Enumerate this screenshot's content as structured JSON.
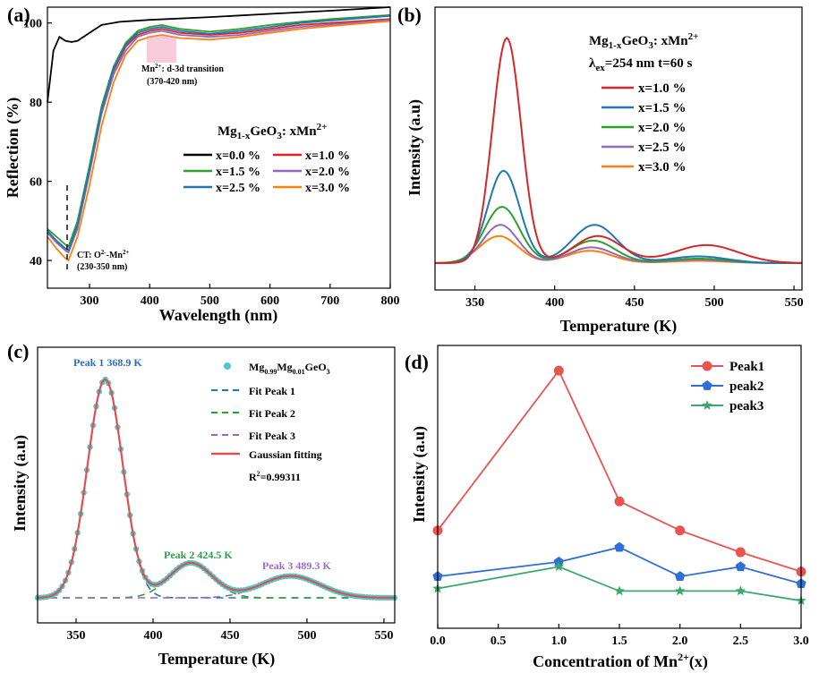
{
  "figure": {
    "panels": [
      {
        "label": "(a)",
        "chart_data": {
          "type": "line",
          "xlabel": "Wavelength (nm)",
          "ylabel": "Reflection (%)",
          "xlim": [
            230,
            800
          ],
          "ylim": [
            33,
            104
          ],
          "xticks": [
            300,
            400,
            500,
            600,
            700,
            800
          ],
          "yticks": [
            40,
            60,
            80,
            100
          ],
          "legend_title": "Mg1-xGeO3: xMn2+",
          "series": [
            {
              "name": "x=0.0 %",
              "color": "#000000",
              "points": [
                [
                  230,
                  80
                ],
                [
                  240,
                  93
                ],
                [
                  250,
                  96.5
                ],
                [
                  260,
                  95.5
                ],
                [
                  270,
                  95.2
                ],
                [
                  280,
                  95.5
                ],
                [
                  300,
                  97.5
                ],
                [
                  320,
                  99.5
                ],
                [
                  350,
                  100.3
                ],
                [
                  400,
                  100.8
                ],
                [
                  500,
                  101.5
                ],
                [
                  600,
                  102.3
                ],
                [
                  700,
                  103.1
                ],
                [
                  800,
                  104
                ]
              ]
            },
            {
              "name": "x=1.0 %",
              "color": "#d62728",
              "points": [
                [
                  230,
                  47
                ],
                [
                  245,
                  45
                ],
                [
                  260,
                  43
                ],
                [
                  265,
                  42.5
                ],
                [
                  280,
                  49
                ],
                [
                  300,
                  63
                ],
                [
                  320,
                  78
                ],
                [
                  340,
                  88
                ],
                [
                  360,
                  94
                ],
                [
                  380,
                  97
                ],
                [
                  400,
                  98
                ],
                [
                  420,
                  98.5
                ],
                [
                  450,
                  97.5
                ],
                [
                  500,
                  97
                ],
                [
                  550,
                  97.5
                ],
                [
                  600,
                  98.5
                ],
                [
                  650,
                  99.5
                ],
                [
                  700,
                  100
                ],
                [
                  800,
                  101
                ]
              ]
            },
            {
              "name": "x=1.5 %",
              "color": "#2ca02c",
              "points": [
                [
                  230,
                  48
                ],
                [
                  245,
                  46
                ],
                [
                  260,
                  44
                ],
                [
                  265,
                  43.5
                ],
                [
                  280,
                  50
                ],
                [
                  300,
                  64
                ],
                [
                  320,
                  79
                ],
                [
                  340,
                  89
                ],
                [
                  360,
                  95
                ],
                [
                  380,
                  98
                ],
                [
                  400,
                  99
                ],
                [
                  420,
                  99.5
                ],
                [
                  450,
                  98.5
                ],
                [
                  500,
                  97.8
                ],
                [
                  550,
                  98.5
                ],
                [
                  600,
                  99.5
                ],
                [
                  650,
                  100.3
                ],
                [
                  700,
                  101
                ],
                [
                  800,
                  102
                ]
              ]
            },
            {
              "name": "x=2.0 %",
              "color": "#9467bd",
              "points": [
                [
                  230,
                  47
                ],
                [
                  245,
                  44.5
                ],
                [
                  260,
                  42.5
                ],
                [
                  265,
                  42
                ],
                [
                  280,
                  48
                ],
                [
                  300,
                  62
                ],
                [
                  320,
                  77
                ],
                [
                  340,
                  87
                ],
                [
                  360,
                  93
                ],
                [
                  380,
                  96.5
                ],
                [
                  400,
                  97.5
                ],
                [
                  420,
                  98
                ],
                [
                  450,
                  97
                ],
                [
                  500,
                  96.5
                ],
                [
                  550,
                  97
                ],
                [
                  600,
                  98
                ],
                [
                  650,
                  99
                ],
                [
                  700,
                  99.6
                ],
                [
                  800,
                  100.8
                ]
              ]
            },
            {
              "name": "x=2.5 %",
              "color": "#1f77b4",
              "points": [
                [
                  230,
                  47.5
                ],
                [
                  245,
                  45
                ],
                [
                  260,
                  43
                ],
                [
                  265,
                  42.5
                ],
                [
                  280,
                  49
                ],
                [
                  300,
                  63
                ],
                [
                  320,
                  78
                ],
                [
                  340,
                  88.5
                ],
                [
                  360,
                  94.5
                ],
                [
                  380,
                  97.5
                ],
                [
                  400,
                  98.5
                ],
                [
                  420,
                  99
                ],
                [
                  450,
                  98
                ],
                [
                  500,
                  97.3
                ],
                [
                  550,
                  98
                ],
                [
                  600,
                  99
                ],
                [
                  650,
                  100
                ],
                [
                  700,
                  100.6
                ],
                [
                  800,
                  101.8
                ]
              ]
            },
            {
              "name": "x=3.0 %",
              "color": "#ff7f0e",
              "points": [
                [
                  230,
                  46
                ],
                [
                  245,
                  43
                ],
                [
                  260,
                  40.5
                ],
                [
                  265,
                  40
                ],
                [
                  280,
                  46
                ],
                [
                  300,
                  59
                ],
                [
                  320,
                  74
                ],
                [
                  340,
                  85
                ],
                [
                  360,
                  92
                ],
                [
                  380,
                  95.5
                ],
                [
                  400,
                  96.5
                ],
                [
                  420,
                  97
                ],
                [
                  450,
                  96.2
                ],
                [
                  500,
                  95.8
                ],
                [
                  550,
                  96.5
                ],
                [
                  600,
                  97.5
                ],
                [
                  650,
                  98.5
                ],
                [
                  700,
                  99.2
                ],
                [
                  800,
                  100.5
                ]
              ]
            }
          ],
          "annotations": [
            "Mn2+: d-3d transition",
            "(370-420 nm)",
            "CT: O2--Mn2+",
            "(230-350 nm)"
          ]
        },
        "legend_title_parts": {
          "a": "Mg",
          "b": "1-x",
          "c": "GeO",
          "d": "3",
          "e": ": xMn",
          "f": "2+"
        },
        "annot_mn_parts": {
          "a": "Mn",
          "b": "2+",
          "c": ": d-3d transition"
        },
        "annot_mn_range": "(370-420 nm)",
        "annot_ct_parts": {
          "a": "CT: O",
          "b": "2-",
          "c": "-Mn",
          "d": "2+"
        },
        "annot_ct_range": "(230-350 nm)"
      },
      {
        "label": "(b)",
        "chart_data": {
          "type": "line",
          "xlabel": "Temperature (K)",
          "ylabel": "Intensity (a.u)",
          "xlim": [
            325,
            555
          ],
          "ylim": [
            0,
            1.05
          ],
          "xticks": [
            350,
            400,
            450,
            500,
            550
          ],
          "legend_title": "Mg1-xGeO3: xMn2+",
          "condition": "λex=254 nm t=60 s",
          "series": [
            {
              "name": "x=1.0 %",
              "color": "#d62728",
              "peaks": [
                [
                  370,
                  1.0,
                  9
                ],
                [
                  427,
                  0.12,
                  15
                ],
                [
                  495,
                  0.08,
                  20
                ]
              ]
            },
            {
              "name": "x=1.5 %",
              "color": "#1f77b4",
              "peaks": [
                [
                  368,
                  0.41,
                  10
                ],
                [
                  425,
                  0.17,
                  14
                ],
                [
                  490,
                  0.03,
                  18
                ]
              ]
            },
            {
              "name": "x=2.0 %",
              "color": "#2ca02c",
              "peaks": [
                [
                  367,
                  0.25,
                  11
                ],
                [
                  424,
                  0.1,
                  14
                ],
                [
                  490,
                  0.02,
                  18
                ]
              ]
            },
            {
              "name": "x=2.5 %",
              "color": "#9467bd",
              "peaks": [
                [
                  366,
                  0.17,
                  11
                ],
                [
                  423,
                  0.07,
                  14
                ],
                [
                  490,
                  0.015,
                  18
                ]
              ]
            },
            {
              "name": "x=3.0 %",
              "color": "#ff7f0e",
              "peaks": [
                [
                  365,
                  0.12,
                  12
                ],
                [
                  422,
                  0.055,
                  14
                ],
                [
                  490,
                  0.01,
                  18
                ]
              ]
            }
          ]
        },
        "title_parts": {
          "a": "Mg",
          "b": "1-x",
          "c": "GeO",
          "d": "3",
          "e": ": xMn",
          "f": "2+"
        },
        "condition_parts": {
          "a": "λ",
          "b": "ex",
          "c": "=254 nm t=60 s"
        }
      },
      {
        "label": "(c)",
        "chart_data": {
          "type": "line",
          "xlabel": "Temperature (K)",
          "ylabel": "Intensity (a.u)",
          "xlim": [
            325,
            557
          ],
          "ylim": [
            -0.07,
            1.05
          ],
          "xticks": [
            350,
            400,
            450,
            500,
            550
          ],
          "r_squared": "R2=0.99311",
          "fit_peaks": [
            {
              "name": "Fit Peak 1",
              "color": "#1f77b4",
              "center": 368.9,
              "height": 1.0,
              "sigma": 11.5
            },
            {
              "name": "Fit Peak 2",
              "color": "#2ca02c",
              "center": 424.5,
              "height": 0.16,
              "sigma": 14
            },
            {
              "name": "Fit Peak 3",
              "color": "#9467bd",
              "center": 489.3,
              "height": 0.1,
              "sigma": 19
            }
          ],
          "experimental_series": {
            "name": "Mg0.99Mg0.01GeO3",
            "color": "#4cc9c9"
          },
          "fit_total": {
            "name": "Gaussian fitting",
            "color": "#e05050"
          },
          "peak_labels": [
            "Peak 1  368.9 K",
            "Peak 2 424.5 K",
            "Peak 3 489.3 K"
          ]
        },
        "legend_exp_parts": {
          "a": "Mg",
          "b": "0.99",
          "c": "Mg",
          "d": "0.01",
          "e": "GeO",
          "f": "3"
        },
        "legend_fit_peak1": "Fit Peak 1",
        "legend_fit_peak2": "Fit Peak 2",
        "legend_fit_peak3": "Fit Peak 3",
        "legend_gauss": "Gaussian fitting",
        "r2_parts": {
          "a": "R",
          "b": "2",
          "c": "=0.99311"
        },
        "peak1_label": "Peak 1  368.9 K",
        "peak2_label": "Peak 2 424.5 K",
        "peak3_label": "Peak 3 489.3 K"
      },
      {
        "label": "(d)",
        "chart_data": {
          "type": "line",
          "xlabel": "Concentration of Mn2+(x)",
          "ylabel": "Intensity (a.u)",
          "xlim": [
            0,
            3.0
          ],
          "ylim": [
            -0.02,
            1.0
          ],
          "xticks": [
            "0.0",
            "0.5",
            "1.0",
            "1.5",
            "2.0",
            "2.5",
            "3.0"
          ],
          "x": [
            0.0,
            1.0,
            1.5,
            2.0,
            2.5,
            3.0
          ],
          "series": [
            {
              "name": "Peak1",
              "color": "#e8544f",
              "marker": "circle",
              "values": [
                0.31,
                0.97,
                0.43,
                0.31,
                0.22,
                0.14
              ]
            },
            {
              "name": "peak2",
              "color": "#2f6fd6",
              "marker": "pentagon",
              "values": [
                0.12,
                0.18,
                0.24,
                0.12,
                0.16,
                0.09
              ]
            },
            {
              "name": "peak3",
              "color": "#3aa86b",
              "marker": "star",
              "values": [
                0.07,
                0.16,
                0.06,
                0.06,
                0.06,
                0.02
              ]
            }
          ]
        },
        "xlabel_parts": {
          "a": "Concentration of Mn",
          "b": "2+",
          "c": "(x)"
        }
      }
    ]
  }
}
